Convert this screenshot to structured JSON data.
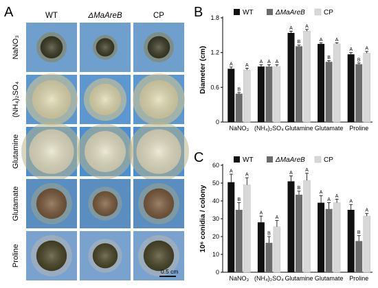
{
  "panels": {
    "a": {
      "letter": "A",
      "columns": [
        "WT",
        "ΔMaAreB",
        "CP"
      ],
      "rows": [
        {
          "label": "NaNO₃",
          "dish_color": "#6fa0cd",
          "colony_color": "#3b3a24",
          "halo_color": "#8a7d4a",
          "colony_r": 0.22
        },
        {
          "label": "(NH₄)₂SO₄",
          "dish_color": "#5d97d0",
          "colony_color": "#e3dcb2",
          "halo_color": "#d9c98a",
          "colony_r": 0.38
        },
        {
          "label": "Glutamine",
          "dish_color": "#4b8ed1",
          "colony_color": "#e6e2c6",
          "halo_color": "#b9b58b",
          "colony_r": 0.44
        },
        {
          "label": "Glutamate",
          "dish_color": "#5a8ec0",
          "colony_color": "#7a5a3a",
          "halo_color": "#9aa28c",
          "colony_r": 0.3
        },
        {
          "label": "Proline",
          "dish_color": "#7aa2cf",
          "colony_color": "#4a4526",
          "halo_color": "#b5b6b0",
          "colony_r": 0.3
        }
      ],
      "scale_bar": "0.5 cm"
    },
    "b": {
      "letter": "B"
    },
    "c": {
      "letter": "C"
    }
  },
  "chart_data": [
    {
      "type": "bar",
      "panel": "B",
      "ylabel": "Diameter (cm)",
      "ylim": [
        0,
        1.8
      ],
      "yticks": [
        "0",
        "0.6",
        "1.2",
        "1.8"
      ],
      "categories": [
        "NaNO₃",
        "(NH₄)₂SO₄",
        "Glutamine",
        "Glutamate",
        "Proline"
      ],
      "series": [
        {
          "name": "WT",
          "color": "#111111",
          "values": [
            0.92,
            0.96,
            1.54,
            1.35,
            1.17
          ],
          "errors": [
            0.03,
            0.03,
            0.03,
            0.02,
            0.03
          ],
          "letters": [
            "A",
            "A",
            "A",
            "A",
            "A"
          ]
        },
        {
          "name": "ΔMaAreB",
          "color": "#6b6b6b",
          "values": [
            0.49,
            0.96,
            1.31,
            1.04,
            1.0
          ],
          "errors": [
            0.02,
            0.03,
            0.02,
            0.02,
            0.02
          ],
          "letters": [
            "B",
            "A",
            "B",
            "B",
            "B"
          ]
        },
        {
          "name": "CP",
          "color": "#d8d8d8",
          "values": [
            0.9,
            0.96,
            1.57,
            1.35,
            1.19
          ],
          "errors": [
            0.03,
            0.03,
            0.03,
            0.02,
            0.03
          ],
          "letters": [
            "A",
            "A",
            "A",
            "A",
            "A"
          ]
        }
      ],
      "legend": "top-center"
    },
    {
      "type": "bar",
      "panel": "C",
      "ylabel": "10⁶ conidia / colony",
      "ylim": [
        0,
        60
      ],
      "yticks": [
        "0",
        "10",
        "20",
        "30",
        "40",
        "50",
        "60"
      ],
      "categories": [
        "NaNO₃",
        "(NH₄)₂SO₄",
        "Glutamine",
        "Glutamate",
        "Proline"
      ],
      "series": [
        {
          "name": "WT",
          "color": "#111111",
          "values": [
            50.5,
            28.0,
            51.0,
            39.0,
            35.0
          ],
          "errors": [
            4.5,
            3.5,
            3.0,
            4.0,
            3.0
          ],
          "letters": [
            "A",
            "A",
            "A",
            "A",
            "A"
          ]
        },
        {
          "name": "ΔMaAreB",
          "color": "#6b6b6b",
          "values": [
            35.0,
            16.5,
            43.5,
            35.5,
            17.5
          ],
          "errors": [
            4.0,
            3.5,
            2.0,
            3.5,
            3.0
          ],
          "letters": [
            "B",
            "B",
            "B",
            "A",
            "B"
          ]
        },
        {
          "name": "CP",
          "color": "#d8d8d8",
          "values": [
            49.0,
            25.5,
            51.5,
            39.0,
            31.5
          ],
          "errors": [
            4.0,
            3.5,
            4.0,
            2.0,
            1.5
          ],
          "letters": [
            "A",
            "A",
            "A",
            "A",
            "A"
          ]
        }
      ],
      "legend": "top-center"
    }
  ]
}
